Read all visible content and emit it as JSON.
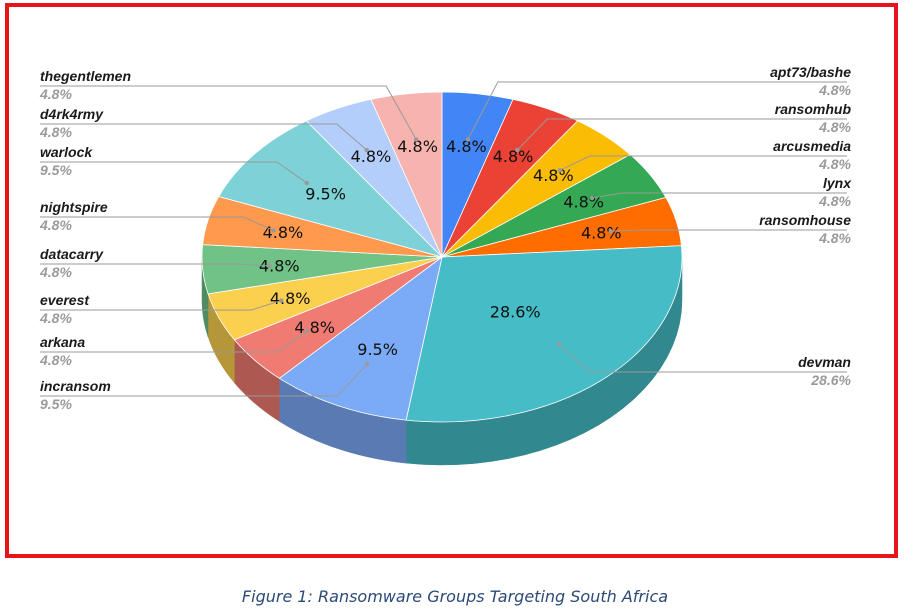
{
  "caption": "Figure 1: Ransomware Groups Targeting South Africa",
  "colors": {
    "frame": "#e8141b"
  },
  "chart_data": {
    "type": "pie",
    "style": "3d",
    "title": "",
    "slices": [
      {
        "name": "apt73/bashe",
        "value": 4.8,
        "label": "4.8%",
        "color": "#4285f4"
      },
      {
        "name": "ransomhub",
        "value": 4.8,
        "label": "4.8%",
        "color": "#ea4335"
      },
      {
        "name": "arcusmedia",
        "value": 4.8,
        "label": "4.8%",
        "color": "#fbbc04"
      },
      {
        "name": "lynx",
        "value": 4.8,
        "label": "4.8%",
        "color": "#34a853"
      },
      {
        "name": "ransomhouse",
        "value": 4.8,
        "label": "4.8%",
        "color": "#ff6d01"
      },
      {
        "name": "devman",
        "value": 28.6,
        "label": "28.6%",
        "color": "#46bdc6"
      },
      {
        "name": "incransom",
        "value": 9.5,
        "label": "9.5%",
        "color": "#7baaf7"
      },
      {
        "name": "arkana",
        "value": 4.8,
        "label": "4.8%",
        "color": "#f07b72"
      },
      {
        "name": "everest",
        "value": 4.8,
        "label": "4.8%",
        "color": "#fcd04f"
      },
      {
        "name": "datacarry",
        "value": 4.8,
        "label": "4.8%",
        "color": "#71c287"
      },
      {
        "name": "nightspire",
        "value": 4.8,
        "label": "4.8%",
        "color": "#ff994d"
      },
      {
        "name": "warlock",
        "value": 9.5,
        "label": "9.5%",
        "color": "#7ed1d7"
      },
      {
        "name": "d4rk4rmy",
        "value": 4.8,
        "label": "4.8%",
        "color": "#b3cefb"
      },
      {
        "name": "thegentlemen",
        "value": 4.8,
        "label": "4.8%",
        "color": "#f7b4ae"
      }
    ],
    "legend": "callout labels on both sides"
  }
}
